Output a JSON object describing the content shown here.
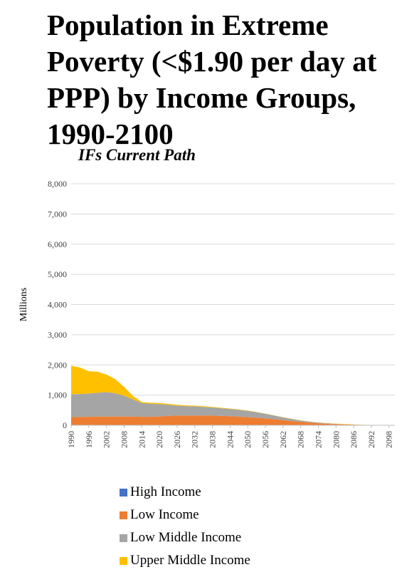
{
  "title": "Population in Extreme Poverty (<$1.90 per day at PPP) by Income Groups, 1990-2100",
  "subtitle": "IFs Current Path",
  "chart_data": {
    "type": "area",
    "stacked": true,
    "ylabel": "Millions",
    "ylim": [
      0,
      8000
    ],
    "yticks": [
      0,
      1000,
      2000,
      3000,
      4000,
      5000,
      6000,
      7000,
      8000
    ],
    "ytick_labels": [
      "0",
      "1,000",
      "2,000",
      "3,000",
      "4,000",
      "5,000",
      "6,000",
      "7,000",
      "8,000"
    ],
    "xlim": [
      1990,
      2100
    ],
    "xticks": [
      1990,
      1996,
      2002,
      2008,
      2014,
      2020,
      2026,
      2032,
      2038,
      2044,
      2050,
      2056,
      2062,
      2068,
      2074,
      2080,
      2086,
      2092,
      2098
    ],
    "grid": true,
    "legend_position": "bottom",
    "x": [
      1990,
      1993,
      1996,
      1999,
      2002,
      2005,
      2008,
      2011,
      2014,
      2017,
      2020,
      2023,
      2026,
      2029,
      2032,
      2035,
      2038,
      2041,
      2044,
      2047,
      2050,
      2053,
      2056,
      2059,
      2062,
      2065,
      2068,
      2071,
      2074,
      2077,
      2080,
      2083,
      2086,
      2089,
      2092,
      2095,
      2098,
      2100
    ],
    "series": [
      {
        "name": "High Income",
        "color": "#4472c4",
        "values": [
          0,
          0,
          0,
          0,
          0,
          0,
          0,
          0,
          0,
          0,
          0,
          0,
          0,
          0,
          0,
          0,
          0,
          0,
          0,
          0,
          0,
          0,
          0,
          0,
          0,
          0,
          0,
          0,
          0,
          0,
          0,
          0,
          0,
          0,
          0,
          0,
          0,
          0
        ]
      },
      {
        "name": "Low Income",
        "color": "#ed7d31",
        "values": [
          270,
          275,
          280,
          285,
          290,
          290,
          290,
          285,
          280,
          280,
          290,
          310,
          320,
          325,
          325,
          325,
          320,
          310,
          300,
          285,
          270,
          250,
          230,
          200,
          170,
          140,
          110,
          85,
          65,
          48,
          35,
          25,
          18,
          12,
          8,
          5,
          3,
          2
        ]
      },
      {
        "name": "Low Middle Income",
        "color": "#a5a5a5",
        "values": [
          760,
          760,
          770,
          790,
          810,
          770,
          690,
          570,
          460,
          430,
          410,
          370,
          330,
          310,
          300,
          285,
          270,
          255,
          240,
          225,
          205,
          180,
          150,
          120,
          90,
          65,
          45,
          32,
          22,
          15,
          10,
          6,
          4,
          2,
          1,
          1,
          0,
          0
        ]
      },
      {
        "name": "Upper Middle Income",
        "color": "#ffc000",
        "values": [
          940,
          880,
          740,
          700,
          580,
          470,
          290,
          120,
          30,
          35,
          35,
          30,
          30,
          25,
          25,
          20,
          20,
          15,
          15,
          12,
          10,
          10,
          8,
          8,
          8,
          8,
          8,
          8,
          8,
          8,
          8,
          8,
          6,
          3,
          1,
          0,
          0,
          0
        ]
      }
    ]
  }
}
